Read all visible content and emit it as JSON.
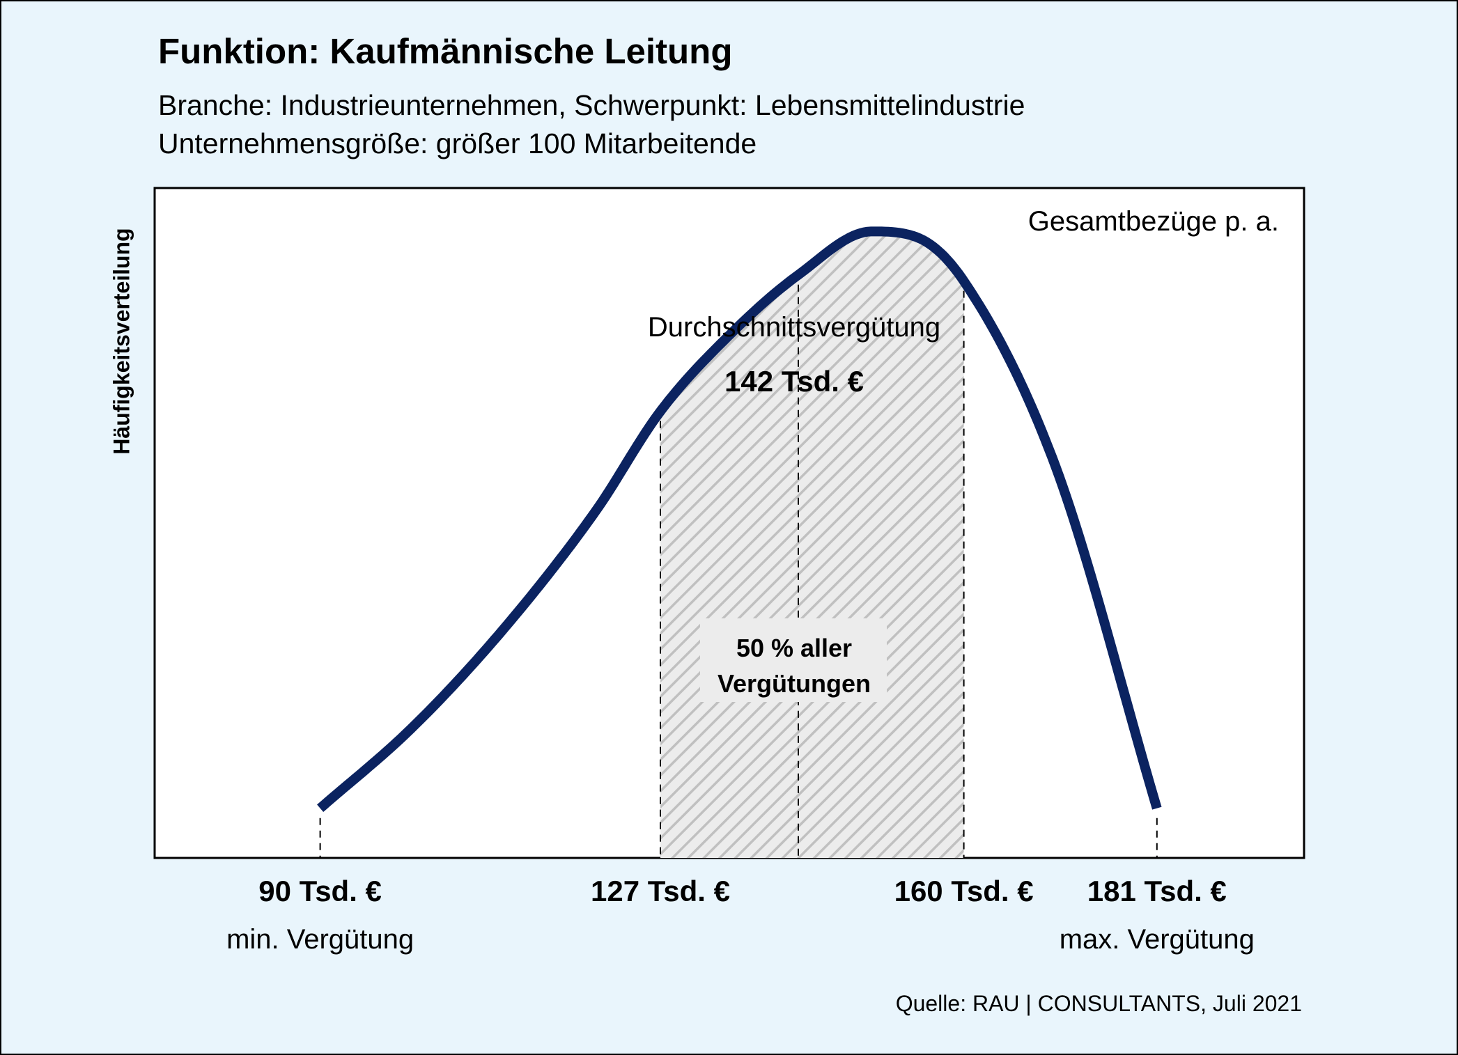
{
  "chart_data": {
    "type": "area",
    "title": "Funktion: Kaufmännische Leitung",
    "subtitle_lines": [
      "Branche: Industrieunternehmen, Schwerpunkt: Lebensmittelindustrie",
      "Unternehmensgröße: größer 100 Mitarbeitende"
    ],
    "ylabel": "Häufigkeitsverteilung",
    "corner_label": "Gesamtbezüge p. a.",
    "unit": "Tsd. €",
    "curve_color": "#0b2360",
    "hatch_color": "#c0c0c0",
    "curve": {
      "x": [
        90,
        100,
        110,
        120,
        127,
        135,
        142,
        150,
        155,
        160,
        170,
        181
      ],
      "y": [
        0.0,
        0.13,
        0.29,
        0.48,
        0.64,
        0.77,
        0.86,
        0.93,
        0.92,
        0.85,
        0.55,
        0.0
      ]
    },
    "markers": [
      {
        "value": 90,
        "label": "90 Tsd. €",
        "caption": "min. Vergütung"
      },
      {
        "value": 127,
        "label": "127 Tsd. €",
        "caption": ""
      },
      {
        "value": 142,
        "label": "",
        "caption": ""
      },
      {
        "value": 160,
        "label": "160 Tsd. €",
        "caption": ""
      },
      {
        "value": 181,
        "label": "181 Tsd. €",
        "caption": "max. Vergütung"
      }
    ],
    "average": {
      "value": 142,
      "heading": "Durchschnittsvergütung",
      "label": "142 Tsd. €"
    },
    "interquartile": {
      "from": 127,
      "to": 160,
      "label_line1": "50 % aller",
      "label_line2": "Vergütungen"
    },
    "xlim": [
      72,
      197
    ],
    "ylim": [
      -0.08,
      1.0
    ],
    "source": "Quelle: RAU | CONSULTANTS, Juli 2021"
  }
}
